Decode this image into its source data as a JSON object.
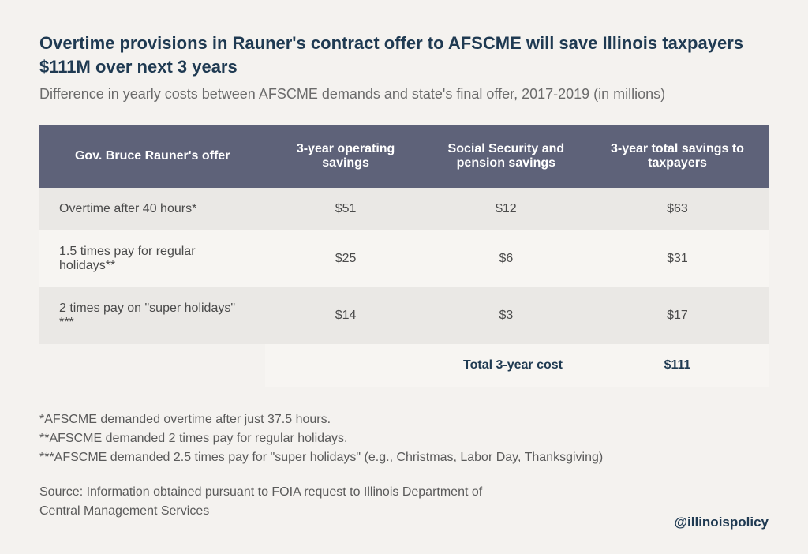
{
  "title": "Overtime provisions in Rauner's contract offer to AFSCME will save Illinois taxpayers $111M over next 3 years",
  "subtitle": "Difference in yearly costs between AFSCME demands and state's final offer, 2017-2019 (in millions)",
  "table": {
    "headers": {
      "col1": "Gov. Bruce Rauner's offer",
      "col2": "3-year operating savings",
      "col3": "Social Security and pension savings",
      "col4": "3-year total savings to taxpayers"
    },
    "rows": [
      {
        "label": "Overtime after 40 hours*",
        "operating": "$51",
        "ss_pension": "$12",
        "total": "$63"
      },
      {
        "label": "1.5 times pay for regular holidays**",
        "operating": "$25",
        "ss_pension": "$6",
        "total": "$31"
      },
      {
        "label": "2 times pay on \"super holidays\" ***",
        "operating": "$14",
        "ss_pension": "$3",
        "total": "$17"
      }
    ],
    "total": {
      "label": "Total 3-year cost",
      "value": "$111"
    }
  },
  "footnotes": {
    "note1": "*AFSCME demanded overtime after just 37.5 hours.",
    "note2": "**AFSCME demanded 2 times pay for regular holidays.",
    "note3": "***AFSCME demanded 2.5 times pay for \"super holidays\" (e.g., Christmas, Labor Day, Thanksgiving)"
  },
  "source": {
    "line1": "Source: Information obtained pursuant to FOIA request to Illinois Department of",
    "line2": "Central Management Services"
  },
  "attribution": "@illinoispolicy",
  "colors": {
    "background": "#f4f2ef",
    "title_text": "#1f3a52",
    "subtitle_text": "#6b6b6b",
    "header_bg": "#5e6279",
    "header_text": "#ffffff",
    "row_odd_bg": "#eae8e5",
    "row_even_bg": "#f7f5f2",
    "total_bg": "#c3c1cb",
    "body_text": "#4a4a4a",
    "footnote_text": "#5a5a5a"
  }
}
